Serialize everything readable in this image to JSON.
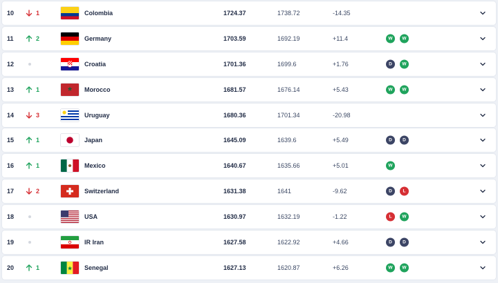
{
  "colors": {
    "up": "#1fa35c",
    "down": "#d62f34",
    "win": "#1fa35c",
    "draw": "#3c4565",
    "loss": "#d62f34"
  },
  "rows": [
    {
      "rank": "10",
      "move_dir": "down",
      "move_val": "1",
      "flag": "colombia-flag",
      "country": "Colombia",
      "points": "1724.37",
      "prev": "1738.72",
      "diff": "-14.35",
      "form": []
    },
    {
      "rank": "11",
      "move_dir": "up",
      "move_val": "2",
      "flag": "germany-flag",
      "country": "Germany",
      "points": "1703.59",
      "prev": "1692.19",
      "diff": "+11.4",
      "form": [
        "W",
        "W"
      ]
    },
    {
      "rank": "12",
      "move_dir": "none",
      "move_val": "",
      "flag": "croatia-flag",
      "country": "Croatia",
      "points": "1701.36",
      "prev": "1699.6",
      "diff": "+1.76",
      "form": [
        "D",
        "W"
      ]
    },
    {
      "rank": "13",
      "move_dir": "up",
      "move_val": "1",
      "flag": "morocco-flag",
      "country": "Morocco",
      "points": "1681.57",
      "prev": "1676.14",
      "diff": "+5.43",
      "form": [
        "W",
        "W"
      ]
    },
    {
      "rank": "14",
      "move_dir": "down",
      "move_val": "3",
      "flag": "uruguay-flag",
      "country": "Uruguay",
      "points": "1680.36",
      "prev": "1701.34",
      "diff": "-20.98",
      "form": []
    },
    {
      "rank": "15",
      "move_dir": "up",
      "move_val": "1",
      "flag": "japan-flag",
      "country": "Japan",
      "points": "1645.09",
      "prev": "1639.6",
      "diff": "+5.49",
      "form": [
        "D",
        "D"
      ]
    },
    {
      "rank": "16",
      "move_dir": "up",
      "move_val": "1",
      "flag": "mexico-flag",
      "country": "Mexico",
      "points": "1640.67",
      "prev": "1635.66",
      "diff": "+5.01",
      "form": [
        "W"
      ]
    },
    {
      "rank": "17",
      "move_dir": "down",
      "move_val": "2",
      "flag": "switzerland-flag",
      "country": "Switzerland",
      "points": "1631.38",
      "prev": "1641",
      "diff": "-9.62",
      "form": [
        "D",
        "L"
      ]
    },
    {
      "rank": "18",
      "move_dir": "none",
      "move_val": "",
      "flag": "usa-flag",
      "country": "USA",
      "points": "1630.97",
      "prev": "1632.19",
      "diff": "-1.22",
      "form": [
        "L",
        "W"
      ]
    },
    {
      "rank": "19",
      "move_dir": "none",
      "move_val": "",
      "flag": "iran-flag",
      "country": "IR Iran",
      "points": "1627.58",
      "prev": "1622.92",
      "diff": "+4.66",
      "form": [
        "D",
        "D"
      ]
    },
    {
      "rank": "20",
      "move_dir": "up",
      "move_val": "1",
      "flag": "senegal-flag",
      "country": "Senegal",
      "points": "1627.13",
      "prev": "1620.87",
      "diff": "+6.26",
      "form": [
        "W",
        "W"
      ]
    }
  ]
}
